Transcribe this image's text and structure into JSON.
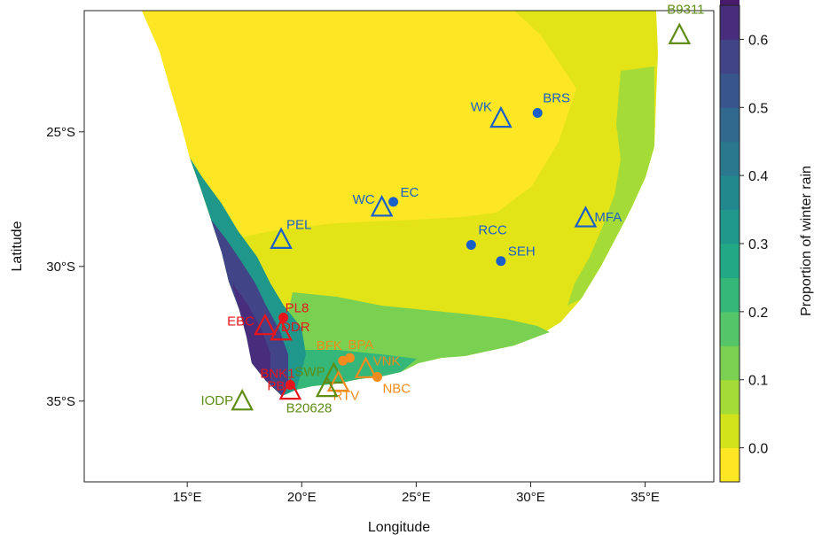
{
  "chart_data": {
    "type": "map",
    "title": "",
    "xlabel": "Longitude",
    "ylabel": "Latitude",
    "xlim": [
      10.5,
      38.0
    ],
    "ylim": [
      -38.0,
      -20.5
    ],
    "x_ticks": [
      {
        "value": 15,
        "label": "15°E"
      },
      {
        "value": 20,
        "label": "20°E"
      },
      {
        "value": 25,
        "label": "25°E"
      },
      {
        "value": 30,
        "label": "30°E"
      },
      {
        "value": 35,
        "label": "35°E"
      }
    ],
    "y_ticks": [
      {
        "value": -25,
        "label": "25°S"
      },
      {
        "value": -30,
        "label": "30°S"
      },
      {
        "value": -35,
        "label": "35°S"
      }
    ],
    "colorbar": {
      "label": "Proportion of winter rain",
      "range": [
        -0.05,
        0.65
      ],
      "bin_width": 0.05,
      "ticks": [
        {
          "value": 0.0,
          "label": "0.0"
        },
        {
          "value": 0.1,
          "label": "0.1"
        },
        {
          "value": 0.2,
          "label": "0.2"
        },
        {
          "value": 0.3,
          "label": "0.3"
        },
        {
          "value": 0.4,
          "label": "0.4"
        },
        {
          "value": 0.5,
          "label": "0.5"
        },
        {
          "value": 0.6,
          "label": "0.6"
        }
      ],
      "colors": [
        "#FDE725",
        "#D2E21B",
        "#A5DB36",
        "#7AD151",
        "#54C568",
        "#35B779",
        "#22A884",
        "#1F988B",
        "#23888E",
        "#2A788E",
        "#31688E",
        "#39568C",
        "#414487",
        "#472D7B",
        "#481A6C",
        "#440154"
      ]
    },
    "site_colors": {
      "blue": "#1A5FC9",
      "red": "#E8151B",
      "orange": "#F28C1E",
      "green": "#5E8C14"
    },
    "sites": [
      {
        "label": "B9311",
        "lon": 36.5,
        "lat": -21.4,
        "marker": "triangle",
        "color": "green"
      },
      {
        "label": "BRS",
        "lon": 30.3,
        "lat": -24.3,
        "marker": "circle",
        "color": "blue"
      },
      {
        "label": "WK",
        "lon": 28.7,
        "lat": -24.5,
        "marker": "triangle",
        "color": "blue"
      },
      {
        "label": "EC",
        "lon": 24.0,
        "lat": -27.6,
        "marker": "circle",
        "color": "blue"
      },
      {
        "label": "WC",
        "lon": 23.5,
        "lat": -27.8,
        "marker": "triangle",
        "color": "blue"
      },
      {
        "label": "MFA",
        "lon": 32.4,
        "lat": -28.2,
        "marker": "triangle",
        "color": "blue"
      },
      {
        "label": "PEL",
        "lon": 19.1,
        "lat": -29.0,
        "marker": "triangle",
        "color": "blue"
      },
      {
        "label": "RCC",
        "lon": 27.4,
        "lat": -29.2,
        "marker": "circle",
        "color": "blue"
      },
      {
        "label": "SEH",
        "lon": 28.7,
        "lat": -29.8,
        "marker": "circle",
        "color": "blue"
      },
      {
        "label": "PL8",
        "lon": 19.2,
        "lat": -31.9,
        "marker": "circle",
        "color": "red"
      },
      {
        "label": "EBC",
        "lon": 18.4,
        "lat": -32.2,
        "marker": "triangle",
        "color": "red"
      },
      {
        "label": "DDR",
        "lon": 19.1,
        "lat": -32.4,
        "marker": "triangle",
        "color": "red"
      },
      {
        "label": "BPA",
        "lon": 22.1,
        "lat": -33.4,
        "marker": "circle",
        "color": "orange"
      },
      {
        "label": "BFK",
        "lon": 21.8,
        "lat": -33.5,
        "marker": "circle",
        "color": "orange"
      },
      {
        "label": "SWP",
        "lon": 21.4,
        "lat": -34.0,
        "marker": "triangle",
        "color": "green"
      },
      {
        "label": "VNK",
        "lon": 22.8,
        "lat": -33.8,
        "marker": "triangle",
        "color": "orange"
      },
      {
        "label": "NBC",
        "lon": 23.3,
        "lat": -34.1,
        "marker": "circle",
        "color": "orange"
      },
      {
        "label": "RTV",
        "lon": 21.6,
        "lat": -34.3,
        "marker": "triangle",
        "color": "orange"
      },
      {
        "label": "B20628",
        "lon": 21.1,
        "lat": -34.5,
        "marker": "triangle",
        "color": "green"
      },
      {
        "label": "BNK1",
        "lon": 19.5,
        "lat": -34.4,
        "marker": "circle",
        "color": "red"
      },
      {
        "label": "PB",
        "lon": 19.5,
        "lat": -34.6,
        "marker": "triangle",
        "color": "red"
      },
      {
        "label": "IODP",
        "lon": 17.4,
        "lat": -35.0,
        "marker": "triangle",
        "color": "green"
      }
    ]
  }
}
